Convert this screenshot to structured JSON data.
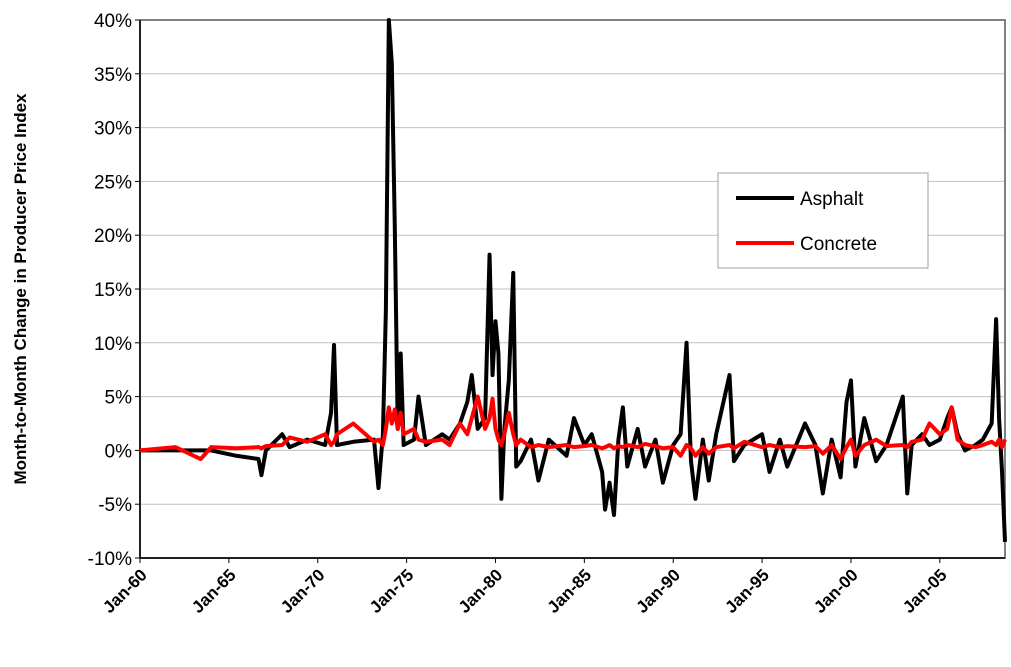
{
  "chart_data": {
    "type": "line",
    "ylabel": "Month-to-Month Change in Producer Price Index",
    "x": [
      "1960-01",
      "1962-01",
      "1963-06",
      "1964-01",
      "1965-06",
      "1966-09",
      "1966-11",
      "1967-02",
      "1968-01",
      "1968-06",
      "1969-06",
      "1970-06",
      "1970-10",
      "1970-12",
      "1971-02",
      "1972-01",
      "1973-03",
      "1973-06",
      "1973-09",
      "1973-11",
      "1974-01",
      "1974-03",
      "1974-05",
      "1974-07",
      "1974-09",
      "1974-11",
      "1975-06",
      "1975-09",
      "1976-02",
      "1977-01",
      "1977-06",
      "1978-01",
      "1978-06",
      "1978-09",
      "1979-01",
      "1979-06",
      "1979-09",
      "1979-11",
      "1980-01",
      "1980-03",
      "1980-05",
      "1980-07",
      "1980-10",
      "1981-01",
      "1981-03",
      "1981-06",
      "1982-01",
      "1982-06",
      "1983-01",
      "1984-01",
      "1984-06",
      "1985-01",
      "1985-06",
      "1986-01",
      "1986-03",
      "1986-06",
      "1986-09",
      "1986-12",
      "1987-03",
      "1987-06",
      "1988-01",
      "1988-06",
      "1989-01",
      "1989-06",
      "1990-01",
      "1990-06",
      "1990-10",
      "1991-01",
      "1991-04",
      "1991-09",
      "1992-01",
      "1992-06",
      "1993-03",
      "1993-06",
      "1994-01",
      "1995-01",
      "1995-06",
      "1996-01",
      "1996-06",
      "1997-06",
      "1998-01",
      "1998-06",
      "1998-12",
      "1999-06",
      "1999-10",
      "2000-01",
      "2000-04",
      "2000-10",
      "2001-06",
      "2002-01",
      "2002-12",
      "2003-03",
      "2003-06",
      "2004-01",
      "2004-06",
      "2005-01",
      "2005-06",
      "2005-09",
      "2006-01",
      "2006-06",
      "2007-01",
      "2007-06",
      "2007-12",
      "2008-03",
      "2008-05",
      "2008-07",
      "2008-09"
    ],
    "series": [
      {
        "name": "Asphalt",
        "color": "#000000",
        "values": [
          0,
          0,
          0,
          0,
          -0.5,
          -0.8,
          -2.3,
          0,
          1.5,
          0.3,
          1.0,
          0.5,
          3.5,
          9.8,
          0.5,
          0.8,
          1.0,
          -3.5,
          1.5,
          13,
          40,
          36,
          21,
          2,
          9,
          0.5,
          1,
          5,
          0.5,
          1.5,
          1,
          2.5,
          4.5,
          7,
          2,
          3,
          18.2,
          7,
          12,
          9,
          -4.5,
          2,
          6.5,
          16.5,
          -1.5,
          -1,
          1,
          -2.8,
          1,
          -0.5,
          3,
          0.5,
          1.5,
          -2,
          -5.5,
          -3,
          -6,
          1,
          4,
          -1.5,
          2,
          -1.5,
          1,
          -3,
          0.5,
          1.5,
          10,
          -1,
          -4.5,
          1,
          -2.8,
          1.5,
          7,
          -1,
          0.5,
          1.5,
          -2,
          1,
          -1.5,
          2.5,
          0.5,
          -4,
          1,
          -2.5,
          4.5,
          6.5,
          -1.5,
          3,
          -1,
          0.5,
          5,
          -4,
          0.5,
          1.5,
          0.5,
          1,
          3,
          4,
          1.5,
          0,
          0.5,
          1,
          2.5,
          12.2,
          3,
          -2,
          -8.5
        ]
      },
      {
        "name": "Concrete",
        "color": "#ff0000",
        "values": [
          0,
          0.3,
          -0.8,
          0.3,
          0.2,
          0.3,
          0.2,
          0.4,
          0.5,
          1.2,
          0.8,
          1.5,
          0.5,
          0.8,
          1.5,
          2.5,
          0.8,
          1,
          0.5,
          2,
          4,
          2.5,
          3.8,
          2,
          3.5,
          1.5,
          2,
          1,
          0.8,
          1,
          0.5,
          2.5,
          1.5,
          3,
          5,
          2,
          3,
          4.8,
          2,
          1,
          0.5,
          1.5,
          3.5,
          1.5,
          0.5,
          1,
          0.3,
          0.5,
          0.3,
          0.5,
          0.3,
          0.4,
          0.5,
          0.2,
          0.3,
          0.5,
          0.2,
          0.4,
          0.3,
          0.5,
          0.3,
          0.6,
          0.4,
          0.2,
          0.3,
          -0.5,
          0.5,
          0.2,
          -0.5,
          0.3,
          -0.3,
          0.3,
          0.5,
          0.2,
          0.8,
          0.3,
          0.5,
          0.3,
          0.4,
          0.3,
          0.4,
          -0.3,
          0.5,
          -0.8,
          0.3,
          1,
          -0.5,
          0.5,
          1,
          0.4,
          0.5,
          0.3,
          0.8,
          1,
          2.5,
          1.5,
          2,
          4,
          1,
          0.5,
          0.3,
          0.5,
          0.8,
          0.5,
          1,
          0.3,
          1
        ]
      }
    ],
    "xlim": [
      "1960-01",
      "2008-09"
    ],
    "xticks": [
      {
        "value": "1960-01",
        "label": "Jan-60"
      },
      {
        "value": "1965-01",
        "label": "Jan-65"
      },
      {
        "value": "1970-01",
        "label": "Jan-70"
      },
      {
        "value": "1975-01",
        "label": "Jan-75"
      },
      {
        "value": "1980-01",
        "label": "Jan-80"
      },
      {
        "value": "1985-01",
        "label": "Jan-85"
      },
      {
        "value": "1990-01",
        "label": "Jan-90"
      },
      {
        "value": "1995-01",
        "label": "Jan-95"
      },
      {
        "value": "2000-01",
        "label": "Jan-00"
      },
      {
        "value": "2005-01",
        "label": "Jan-05"
      }
    ],
    "ylim": [
      -10,
      40
    ],
    "yticks": [
      {
        "value": -10,
        "label": "-10%"
      },
      {
        "value": -5,
        "label": "-5%"
      },
      {
        "value": 0,
        "label": "0%"
      },
      {
        "value": 5,
        "label": "5%"
      },
      {
        "value": 10,
        "label": "10%"
      },
      {
        "value": 15,
        "label": "15%"
      },
      {
        "value": 20,
        "label": "20%"
      },
      {
        "value": 25,
        "label": "25%"
      },
      {
        "value": 30,
        "label": "30%"
      },
      {
        "value": 35,
        "label": "35%"
      },
      {
        "value": 40,
        "label": "40%"
      }
    ],
    "grid": true,
    "legend": "right"
  }
}
